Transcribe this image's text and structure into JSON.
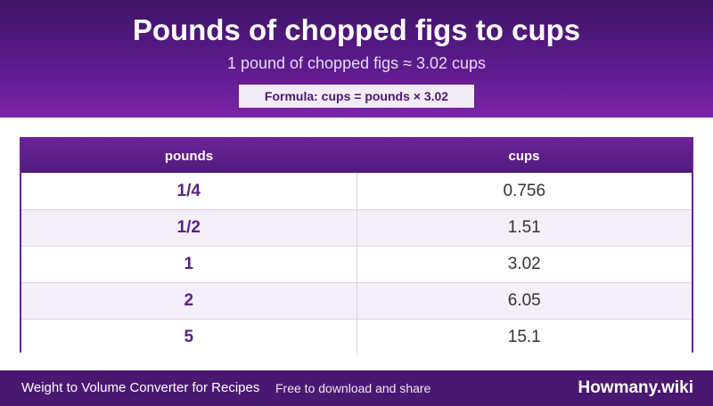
{
  "header": {
    "title": "Pounds of chopped figs to cups",
    "subtitle": "1 pound of chopped figs ≈ 3.02 cups",
    "formula": "Formula: cups = pounds × 3.02"
  },
  "table": {
    "columns": [
      "pounds",
      "cups"
    ],
    "rows": [
      {
        "pounds": "1/4",
        "cups": "0.756"
      },
      {
        "pounds": "1/2",
        "cups": "1.51"
      },
      {
        "pounds": "1",
        "cups": "3.02"
      },
      {
        "pounds": "2",
        "cups": "6.05"
      },
      {
        "pounds": "5",
        "cups": "15.1"
      }
    ]
  },
  "footer": {
    "left": "Weight to Volume Converter for Recipes",
    "middle": "Free to download and share",
    "brand": "Howmany.wiki"
  },
  "colors": {
    "header_dark": "#3f1466",
    "header_light": "#7b24a8",
    "accent_text": "#5a1f86",
    "footer": "#4a1871"
  }
}
